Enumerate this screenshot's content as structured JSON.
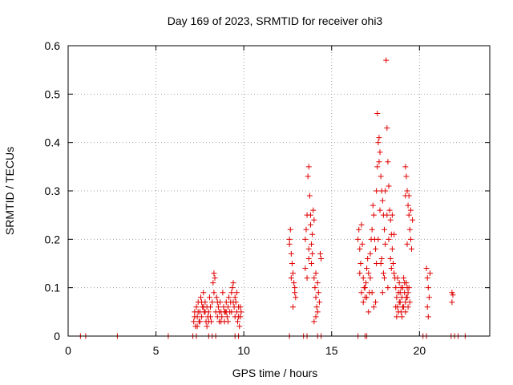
{
  "chart_data": {
    "type": "scatter",
    "title": "Day 169 of 2023, SRMTID for receiver ohi3",
    "xlabel": "GPS time / hours",
    "ylabel": "SRMTID / TECUs",
    "xlim": [
      0,
      24
    ],
    "ylim": [
      0,
      0.6
    ],
    "xticks": [
      0,
      5,
      10,
      15,
      20
    ],
    "yticks": [
      0,
      0.1,
      0.2,
      0.3,
      0.4,
      0.5,
      0.6
    ],
    "xtick_labels": [
      "0",
      "5",
      "10",
      "15",
      "20"
    ],
    "ytick_labels": [
      "0",
      "0.1",
      "0.2",
      "0.3",
      "0.4",
      "0.5",
      "0.6"
    ],
    "grid": true,
    "marker": "+",
    "color": "#e00000",
    "series": [
      {
        "name": "SRMTID",
        "points": [
          [
            0.7,
            0
          ],
          [
            1.0,
            0
          ],
          [
            2.8,
            0
          ],
          [
            5.7,
            0
          ],
          [
            7.1,
            0
          ],
          [
            7.3,
            0
          ],
          [
            8.0,
            0
          ],
          [
            8.2,
            0
          ],
          [
            8.4,
            0
          ],
          [
            9.5,
            0
          ],
          [
            9.7,
            0
          ],
          [
            12.6,
            0
          ],
          [
            13.4,
            0
          ],
          [
            13.6,
            0
          ],
          [
            14.2,
            0
          ],
          [
            14.4,
            0
          ],
          [
            16.5,
            0
          ],
          [
            16.9,
            0
          ],
          [
            17.0,
            0
          ],
          [
            20.2,
            0
          ],
          [
            20.4,
            0
          ],
          [
            21.8,
            0
          ],
          [
            22.0,
            0
          ],
          [
            22.2,
            0
          ],
          [
            22.6,
            0
          ],
          [
            7.15,
            0.03
          ],
          [
            7.2,
            0.05
          ],
          [
            7.25,
            0.02
          ],
          [
            7.3,
            0.06
          ],
          [
            7.35,
            0.04
          ],
          [
            7.4,
            0.07
          ],
          [
            7.45,
            0.03
          ],
          [
            7.5,
            0.05
          ],
          [
            7.55,
            0.08
          ],
          [
            7.6,
            0.04
          ],
          [
            7.65,
            0.06
          ],
          [
            7.7,
            0.09
          ],
          [
            7.75,
            0.05
          ],
          [
            7.8,
            0.07
          ],
          [
            7.85,
            0.03
          ],
          [
            7.9,
            0.06
          ],
          [
            7.95,
            0.04
          ],
          [
            8.0,
            0.05
          ],
          [
            8.05,
            0.08
          ],
          [
            8.1,
            0.06
          ],
          [
            8.15,
            0.03
          ],
          [
            8.2,
            0.07
          ],
          [
            8.25,
            0.11
          ],
          [
            8.3,
            0.13
          ],
          [
            8.35,
            0.12
          ],
          [
            8.4,
            0.05
          ],
          [
            8.45,
            0.08
          ],
          [
            8.5,
            0.04
          ],
          [
            8.55,
            0.06
          ],
          [
            8.6,
            0.03
          ],
          [
            8.65,
            0.07
          ],
          [
            8.7,
            0.05
          ],
          [
            8.75,
            0.04
          ],
          [
            8.8,
            0.09
          ],
          [
            8.85,
            0.06
          ],
          [
            8.9,
            0.03
          ],
          [
            8.95,
            0.05
          ],
          [
            9.0,
            0.07
          ],
          [
            9.05,
            0.04
          ],
          [
            9.1,
            0.06
          ],
          [
            9.15,
            0.08
          ],
          [
            9.2,
            0.05
          ],
          [
            9.25,
            0.07
          ],
          [
            9.3,
            0.09
          ],
          [
            9.35,
            0.1
          ],
          [
            9.4,
            0.11
          ],
          [
            9.45,
            0.06
          ],
          [
            9.5,
            0.04
          ],
          [
            9.55,
            0.07
          ],
          [
            9.6,
            0.05
          ],
          [
            9.65,
            0.03
          ],
          [
            9.7,
            0.06
          ],
          [
            9.75,
            0.02
          ],
          [
            9.8,
            0.04
          ],
          [
            9.85,
            0.05
          ],
          [
            7.2,
            0.04
          ],
          [
            7.35,
            0.02
          ],
          [
            7.5,
            0.03
          ],
          [
            7.7,
            0.06
          ],
          [
            7.9,
            0.02
          ],
          [
            8.1,
            0.04
          ],
          [
            8.3,
            0.09
          ],
          [
            8.5,
            0.07
          ],
          [
            8.7,
            0.03
          ],
          [
            8.9,
            0.05
          ],
          [
            9.1,
            0.03
          ],
          [
            9.3,
            0.05
          ],
          [
            9.5,
            0.08
          ],
          [
            9.7,
            0.04
          ],
          [
            7.4,
            0.05
          ],
          [
            7.6,
            0.07
          ],
          [
            7.8,
            0.05
          ],
          [
            8.0,
            0.03
          ],
          [
            8.6,
            0.05
          ],
          [
            9.0,
            0.05
          ],
          [
            9.4,
            0.07
          ],
          [
            9.6,
            0.09
          ],
          [
            9.8,
            0.06
          ],
          [
            12.6,
            0.2
          ],
          [
            12.65,
            0.22
          ],
          [
            12.7,
            0.17
          ],
          [
            12.75,
            0.15
          ],
          [
            12.8,
            0.13
          ],
          [
            12.85,
            0.11
          ],
          [
            12.9,
            0.09
          ],
          [
            12.95,
            0.08
          ],
          [
            12.7,
            0.12
          ],
          [
            12.8,
            0.06
          ],
          [
            12.9,
            0.1
          ],
          [
            12.6,
            0.19
          ],
          [
            13.5,
            0.14
          ],
          [
            13.55,
            0.22
          ],
          [
            13.6,
            0.25
          ],
          [
            13.65,
            0.33
          ],
          [
            13.7,
            0.35
          ],
          [
            13.75,
            0.29
          ],
          [
            13.8,
            0.25
          ],
          [
            13.85,
            0.19
          ],
          [
            13.9,
            0.17
          ],
          [
            13.7,
            0.18
          ],
          [
            13.6,
            0.12
          ],
          [
            13.8,
            0.23
          ],
          [
            13.9,
            0.21
          ],
          [
            13.95,
            0.26
          ],
          [
            14.0,
            0.24
          ],
          [
            13.5,
            0.2
          ],
          [
            13.7,
            0.16
          ],
          [
            13.85,
            0.15
          ],
          [
            14.0,
            0.12
          ],
          [
            14.05,
            0.1
          ],
          [
            14.1,
            0.08
          ],
          [
            14.15,
            0.06
          ],
          [
            14.2,
            0.05
          ],
          [
            14.25,
            0.09
          ],
          [
            14.3,
            0.07
          ],
          [
            14.1,
            0.13
          ],
          [
            14.2,
            0.11
          ],
          [
            14.35,
            0.17
          ],
          [
            14.4,
            0.16
          ],
          [
            14.0,
            0.03
          ],
          [
            14.1,
            0.04
          ],
          [
            16.5,
            0.2
          ],
          [
            16.55,
            0.22
          ],
          [
            16.6,
            0.18
          ],
          [
            16.65,
            0.15
          ],
          [
            16.7,
            0.23
          ],
          [
            16.75,
            0.19
          ],
          [
            16.8,
            0.12
          ],
          [
            16.85,
            0.1
          ],
          [
            16.9,
            0.08
          ],
          [
            16.95,
            0.11
          ],
          [
            17.0,
            0.14
          ],
          [
            17.05,
            0.16
          ],
          [
            17.1,
            0.13
          ],
          [
            17.15,
            0.09
          ],
          [
            17.2,
            0.17
          ],
          [
            17.25,
            0.2
          ],
          [
            17.3,
            0.22
          ],
          [
            17.35,
            0.27
          ],
          [
            17.4,
            0.25
          ],
          [
            17.45,
            0.2
          ],
          [
            17.5,
            0.18
          ],
          [
            17.55,
            0.15
          ],
          [
            17.6,
            0.35
          ],
          [
            17.65,
            0.4
          ],
          [
            17.7,
            0.41
          ],
          [
            17.75,
            0.38
          ],
          [
            17.8,
            0.33
          ],
          [
            17.85,
            0.3
          ],
          [
            17.9,
            0.28
          ],
          [
            17.95,
            0.25
          ],
          [
            18.0,
            0.22
          ],
          [
            18.05,
            0.19
          ],
          [
            18.1,
            0.57
          ],
          [
            18.15,
            0.43
          ],
          [
            18.2,
            0.36
          ],
          [
            18.25,
            0.31
          ],
          [
            18.3,
            0.26
          ],
          [
            18.35,
            0.24
          ],
          [
            18.4,
            0.21
          ],
          [
            18.45,
            0.18
          ],
          [
            18.5,
            0.15
          ],
          [
            18.55,
            0.13
          ],
          [
            17.6,
            0.46
          ],
          [
            17.7,
            0.36
          ],
          [
            17.8,
            0.15
          ],
          [
            17.9,
            0.09
          ],
          [
            18.0,
            0.12
          ],
          [
            18.2,
            0.1
          ],
          [
            18.4,
            0.14
          ],
          [
            17.5,
            0.07
          ],
          [
            17.4,
            0.06
          ],
          [
            17.3,
            0.09
          ],
          [
            17.2,
            0.12
          ],
          [
            17.1,
            0.05
          ],
          [
            17.0,
            0.08
          ],
          [
            16.9,
            0.1
          ],
          [
            16.8,
            0.07
          ],
          [
            16.7,
            0.09
          ],
          [
            16.6,
            0.13
          ],
          [
            17.55,
            0.3
          ],
          [
            17.65,
            0.2
          ],
          [
            17.75,
            0.26
          ],
          [
            17.85,
            0.16
          ],
          [
            17.95,
            0.13
          ],
          [
            18.05,
            0.3
          ],
          [
            18.15,
            0.25
          ],
          [
            18.25,
            0.2
          ],
          [
            18.35,
            0.16
          ],
          [
            18.45,
            0.25
          ],
          [
            18.55,
            0.21
          ],
          [
            18.6,
            0.12
          ],
          [
            18.65,
            0.1
          ],
          [
            18.7,
            0.08
          ],
          [
            18.75,
            0.06
          ],
          [
            18.8,
            0.09
          ],
          [
            18.85,
            0.11
          ],
          [
            18.9,
            0.07
          ],
          [
            18.95,
            0.05
          ],
          [
            19.0,
            0.08
          ],
          [
            19.05,
            0.1
          ],
          [
            19.1,
            0.12
          ],
          [
            19.15,
            0.09
          ],
          [
            19.2,
            0.07
          ],
          [
            19.25,
            0.11
          ],
          [
            19.3,
            0.08
          ],
          [
            19.35,
            0.06
          ],
          [
            19.4,
            0.1
          ],
          [
            19.45,
            0.07
          ],
          [
            18.7,
            0.04
          ],
          [
            18.8,
            0.05
          ],
          [
            18.9,
            0.09
          ],
          [
            19.0,
            0.04
          ],
          [
            19.1,
            0.06
          ],
          [
            19.2,
            0.05
          ],
          [
            19.3,
            0.1
          ],
          [
            18.65,
            0.06
          ],
          [
            18.75,
            0.12
          ],
          [
            18.85,
            0.07
          ],
          [
            18.95,
            0.1
          ],
          [
            19.05,
            0.06
          ],
          [
            19.15,
            0.11
          ],
          [
            19.25,
            0.08
          ],
          [
            19.35,
            0.09
          ],
          [
            19.2,
            0.35
          ],
          [
            19.25,
            0.33
          ],
          [
            19.3,
            0.3
          ],
          [
            19.35,
            0.27
          ],
          [
            19.4,
            0.25
          ],
          [
            19.45,
            0.22
          ],
          [
            19.5,
            0.2
          ],
          [
            19.55,
            0.18
          ],
          [
            19.3,
            0.19
          ],
          [
            19.4,
            0.29
          ],
          [
            19.5,
            0.26
          ],
          [
            19.6,
            0.24
          ],
          [
            19.2,
            0.29
          ],
          [
            20.4,
            0.14
          ],
          [
            20.45,
            0.12
          ],
          [
            20.5,
            0.1
          ],
          [
            20.55,
            0.08
          ],
          [
            20.6,
            0.13
          ],
          [
            20.45,
            0.06
          ],
          [
            20.5,
            0.04
          ],
          [
            21.85,
            0.09
          ],
          [
            21.9,
            0.085
          ],
          [
            21.85,
            0.07
          ]
        ]
      }
    ]
  }
}
